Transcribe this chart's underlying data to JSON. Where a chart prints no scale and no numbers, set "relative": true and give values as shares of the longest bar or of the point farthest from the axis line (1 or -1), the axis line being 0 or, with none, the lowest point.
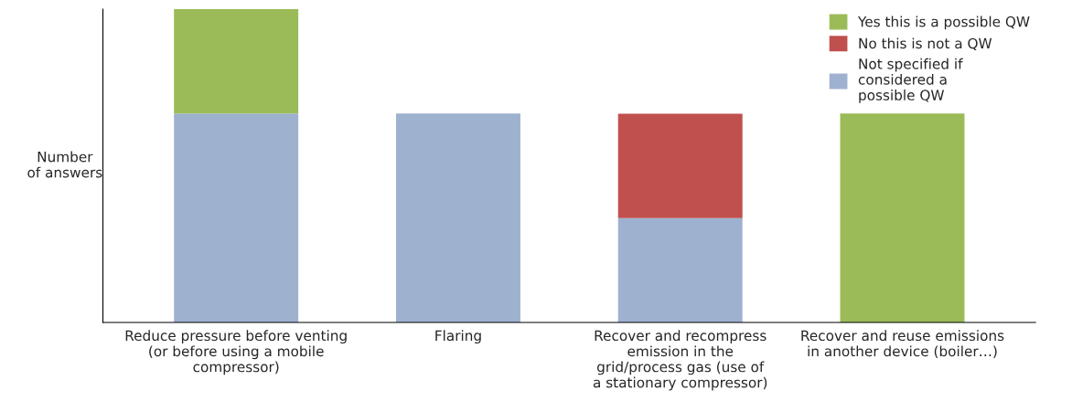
{
  "chart_data": {
    "type": "bar",
    "stacked": true,
    "relative": true,
    "ylabel": "Number\nof answers",
    "categories": [
      "Reduce pressure before venting\n(or before using a mobile\ncompressor)",
      "Flaring",
      "Recover and recompress\nemission in the\ngrid/process gas (use of\na stationary compressor)",
      "Recover and reuse emissions\nin another device (boiler…)"
    ],
    "series": [
      {
        "name": "Not specified if\nconsidered a\npossible QW",
        "color": "#9eb1cf",
        "values": [
          0.667,
          0.667,
          0.333,
          null
        ]
      },
      {
        "name": "No this is not a QW",
        "color": "#c0504d",
        "values": [
          null,
          null,
          0.333,
          null
        ]
      },
      {
        "name": "Yes this is a possible QW",
        "color": "#9bbb59",
        "values": [
          0.333,
          null,
          null,
          0.667
        ]
      }
    ],
    "legend": "top right",
    "grid": false
  }
}
